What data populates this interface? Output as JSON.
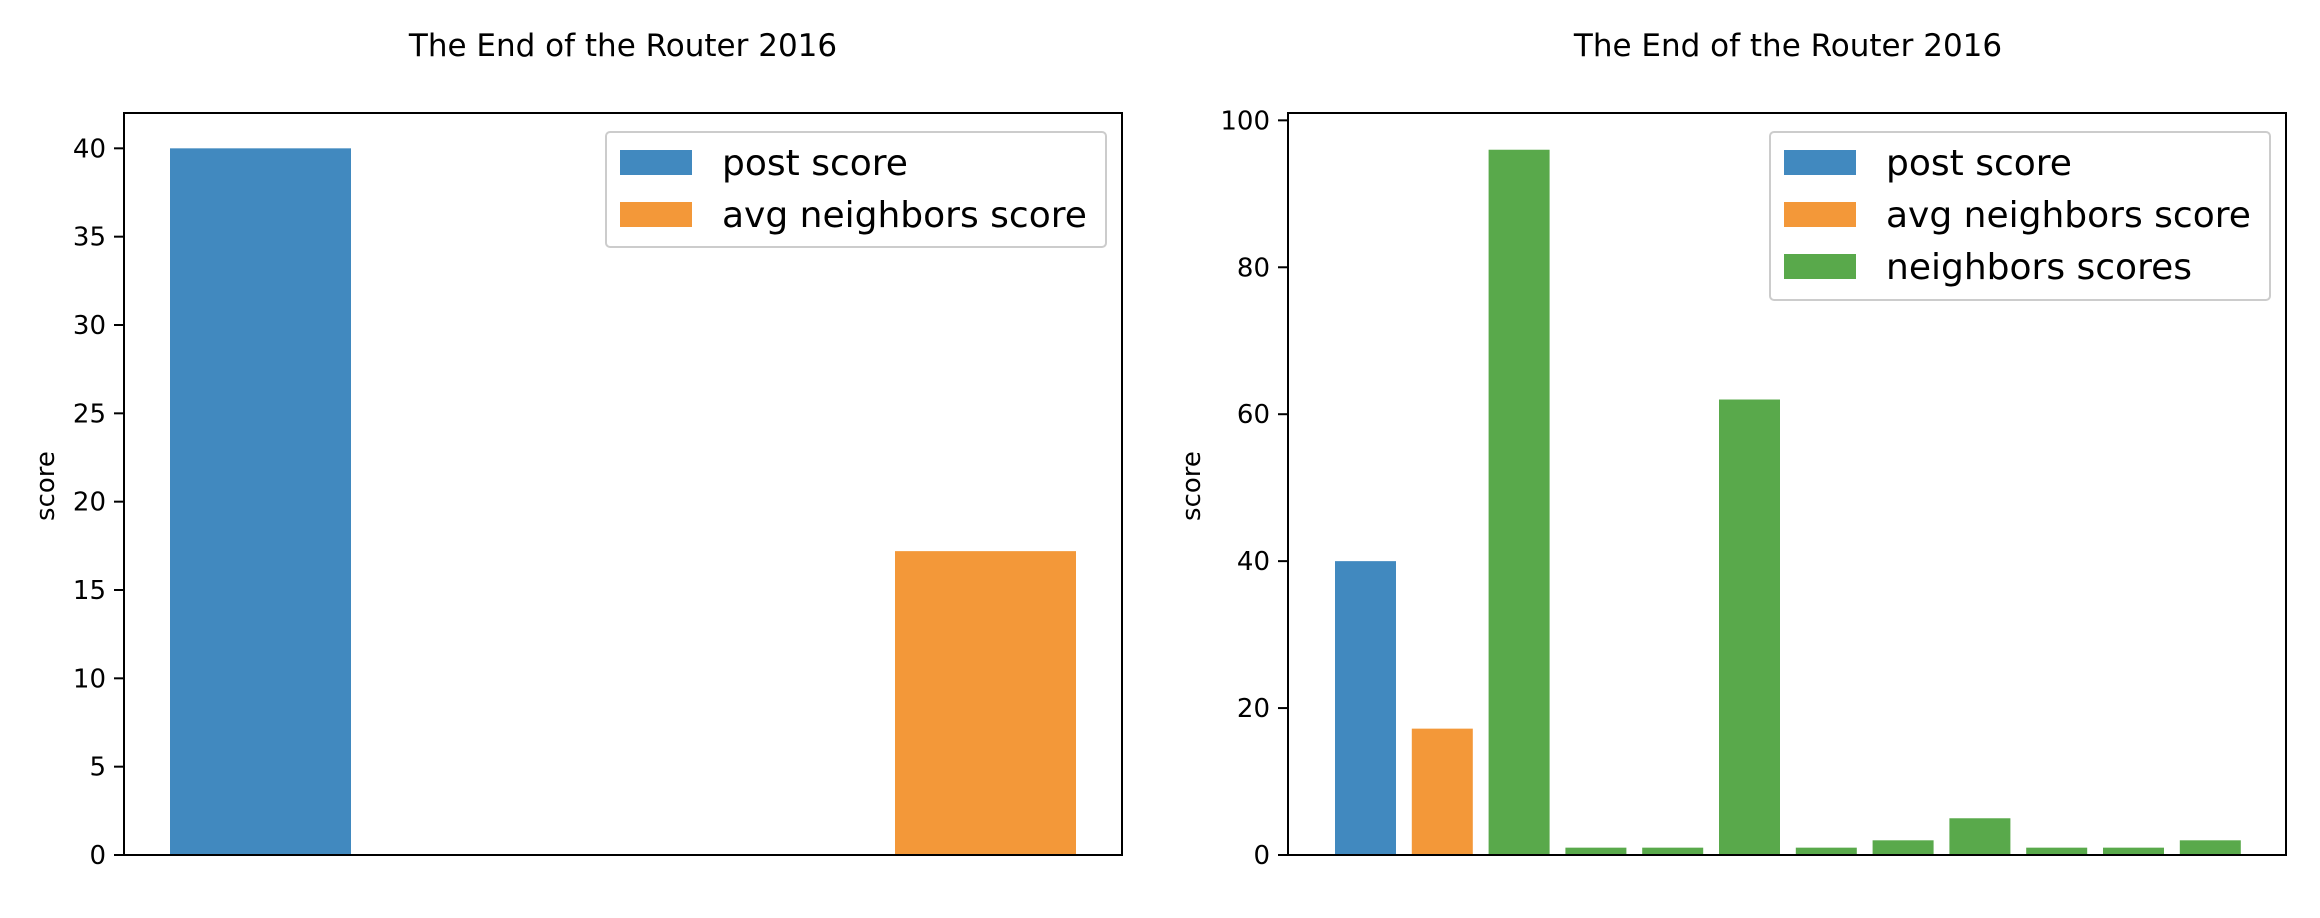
{
  "colors": {
    "post_score": "#4189BF",
    "avg_neighbors_score": "#F39839",
    "neighbors_scores": "#59A94B"
  },
  "chart_data": [
    {
      "type": "bar",
      "title": "The End of the Router 2016",
      "xlabel": "",
      "ylabel": "score",
      "ylim": [
        0,
        42
      ],
      "yticks": [
        0,
        5,
        10,
        15,
        20,
        25,
        30,
        35,
        40
      ],
      "legend_position": "top-right",
      "grid": false,
      "bars": [
        {
          "series": "post score",
          "value": 40
        },
        {
          "series": "avg neighbors score",
          "value": 17.2
        }
      ],
      "series": [
        {
          "name": "post score",
          "color_key": "post_score"
        },
        {
          "name": "avg neighbors score",
          "color_key": "avg_neighbors_score"
        }
      ]
    },
    {
      "type": "bar",
      "title": "The End of the Router 2016",
      "xlabel": "",
      "ylabel": "score",
      "ylim": [
        0,
        101
      ],
      "yticks": [
        0,
        20,
        40,
        60,
        80,
        100
      ],
      "legend_position": "top-right",
      "grid": false,
      "bars": [
        {
          "series": "post score",
          "value": 40
        },
        {
          "series": "avg neighbors score",
          "value": 17.2
        },
        {
          "series": "neighbors scores",
          "value": 96
        },
        {
          "series": "neighbors scores",
          "value": 1
        },
        {
          "series": "neighbors scores",
          "value": 1
        },
        {
          "series": "neighbors scores",
          "value": 62
        },
        {
          "series": "neighbors scores",
          "value": 1
        },
        {
          "series": "neighbors scores",
          "value": 2
        },
        {
          "series": "neighbors scores",
          "value": 5
        },
        {
          "series": "neighbors scores",
          "value": 1
        },
        {
          "series": "neighbors scores",
          "value": 1
        },
        {
          "series": "neighbors scores",
          "value": 2
        }
      ],
      "series": [
        {
          "name": "post score",
          "color_key": "post_score"
        },
        {
          "name": "avg neighbors score",
          "color_key": "avg_neighbors_score"
        },
        {
          "name": "neighbors scores",
          "color_key": "neighbors_scores"
        }
      ]
    }
  ]
}
